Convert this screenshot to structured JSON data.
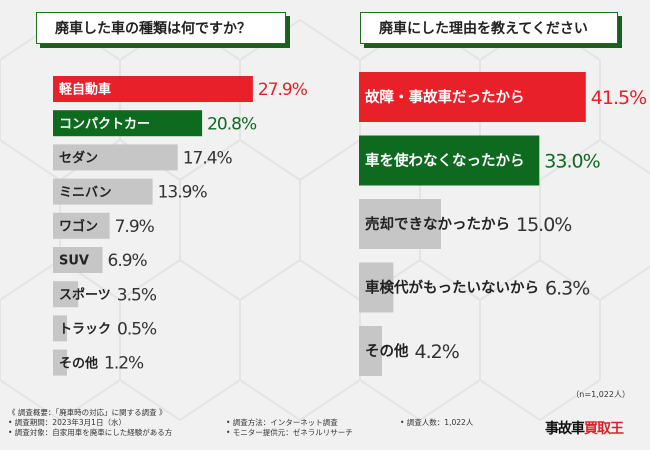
{
  "chart_data": [
    {
      "type": "bar",
      "orientation": "horizontal",
      "title": "廃車した車の種類は何ですか？",
      "categories": [
        "軽自動車",
        "コンパクトカー",
        "セダン",
        "ミニバン",
        "ワゴン",
        "SUV",
        "スポーツ",
        "トラック",
        "その他"
      ],
      "values": [
        27.9,
        20.8,
        17.4,
        13.9,
        7.9,
        6.9,
        3.5,
        0.5,
        1.2
      ],
      "value_labels": [
        "27.9%",
        "20.8%",
        "17.4%",
        "13.9%",
        "7.9%",
        "6.9%",
        "3.5%",
        "0.5%",
        "1.2%"
      ],
      "colors": [
        "#e8202a",
        "#0d6a1f",
        "#c6c6c6",
        "#c6c6c6",
        "#c6c6c6",
        "#c6c6c6",
        "#c6c6c6",
        "#c6c6c6",
        "#c6c6c6"
      ],
      "xlim": [
        0,
        30
      ]
    },
    {
      "type": "bar",
      "orientation": "horizontal",
      "title": "廃車にした理由を教えてください",
      "categories": [
        "故障・事故車だったから",
        "車を使わなくなったから",
        "売却できなかったから",
        "車検代がもったいないから",
        "その他"
      ],
      "values": [
        41.5,
        33.0,
        15.0,
        6.3,
        4.2
      ],
      "value_labels": [
        "41.5%",
        "33.0%",
        "15.0%",
        "6.3%",
        "4.2%"
      ],
      "colors": [
        "#e8202a",
        "#0d6a1f",
        "#c6c6c6",
        "#c6c6c6",
        "#c6c6c6"
      ],
      "xlim": [
        0,
        43
      ]
    }
  ],
  "sample_note": "（n=1,022人）",
  "footer": {
    "col1": [
      "《 調査概要：「廃車時の対応」に関する調査 》",
      "• 調査期間：2023年3月1日（水）",
      "• 調査対象：自家用車を廃車にした経験がある方"
    ],
    "col2": [
      "• 調査方法：インターネット調査",
      "• モニター提供元：ゼネラルリサーチ"
    ],
    "col3": [
      "• 調査人数：1,022人"
    ]
  },
  "logo": {
    "part1": "事故車",
    "part2": "買取王"
  }
}
